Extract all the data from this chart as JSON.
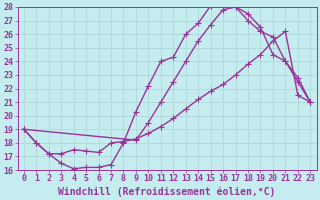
{
  "xlabel": "Windchill (Refroidissement éolien,°C)",
  "bg_color": "#c5ecee",
  "grid_color": "#b0d8dc",
  "line_color": "#993399",
  "xlim": [
    -0.5,
    23.5
  ],
  "ylim": [
    16,
    28
  ],
  "xtick_labels": [
    "0",
    "1",
    "2",
    "3",
    "4",
    "5",
    "6",
    "7",
    "8",
    "9",
    "10",
    "11",
    "12",
    "13",
    "14",
    "15",
    "16",
    "17",
    "18",
    "19",
    "20",
    "21",
    "22",
    "23"
  ],
  "xticks": [
    0,
    1,
    2,
    3,
    4,
    5,
    6,
    7,
    8,
    9,
    10,
    11,
    12,
    13,
    14,
    15,
    16,
    17,
    18,
    19,
    20,
    21,
    22,
    23
  ],
  "yticks": [
    16,
    17,
    18,
    19,
    20,
    21,
    22,
    23,
    24,
    25,
    26,
    27,
    28
  ],
  "curve1_x": [
    0,
    1,
    2,
    3,
    4,
    5,
    6,
    7,
    8,
    9,
    10,
    11,
    12,
    13,
    14,
    15,
    16,
    17,
    18,
    19,
    20,
    21,
    22,
    23
  ],
  "curve1_y": [
    19.0,
    18.0,
    17.2,
    16.5,
    16.1,
    16.2,
    16.2,
    16.4,
    18.0,
    20.3,
    22.2,
    24.0,
    24.3,
    26.0,
    26.8,
    28.1,
    28.2,
    28.0,
    27.5,
    26.5,
    24.5,
    24.0,
    22.8,
    21.0
  ],
  "curve2_x": [
    0,
    9,
    10,
    11,
    12,
    13,
    14,
    15,
    16,
    17,
    18,
    19,
    20,
    21,
    22,
    23
  ],
  "curve2_y": [
    19.0,
    18.2,
    19.5,
    21.0,
    22.5,
    24.0,
    25.5,
    26.7,
    27.8,
    28.0,
    27.0,
    26.2,
    25.8,
    24.0,
    22.5,
    21.0
  ],
  "curve3_x": [
    0,
    1,
    2,
    3,
    4,
    5,
    6,
    7,
    8,
    9,
    10,
    11,
    12,
    13,
    14,
    15,
    16,
    17,
    18,
    19,
    20,
    21,
    22,
    23
  ],
  "curve3_y": [
    19.0,
    18.0,
    17.2,
    17.2,
    17.5,
    17.4,
    17.3,
    18.0,
    18.1,
    18.3,
    18.7,
    19.2,
    19.8,
    20.5,
    21.2,
    21.8,
    22.3,
    23.0,
    23.8,
    24.5,
    25.5,
    26.2,
    21.5,
    21.0
  ],
  "xlabel_fontsize": 7.0,
  "tick_fontsize": 6.0,
  "line_width": 1.0,
  "marker_size": 2.5
}
